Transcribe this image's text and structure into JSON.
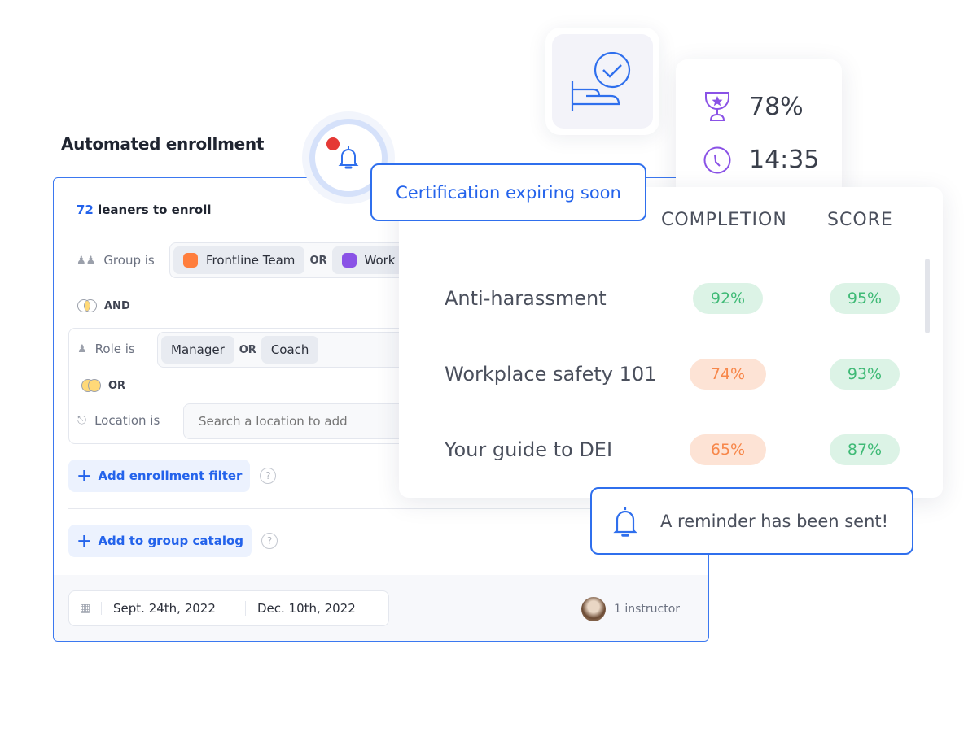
{
  "enrollment": {
    "title": "Automated enrollment",
    "learner_count": "72",
    "learner_label": "leaners to enroll",
    "group_filter": {
      "label": "Group is",
      "chips": [
        {
          "label": "Frontline Team",
          "color": "#ff7e3d"
        },
        {
          "label": "Work",
          "color": "#8a52e6"
        }
      ],
      "or": "OR"
    },
    "and_label": "AND",
    "role_filter": {
      "label": "Role is",
      "chips": [
        "Manager",
        "Coach"
      ],
      "or": "OR"
    },
    "or_label": "OR",
    "location_filter": {
      "label": "Location is",
      "placeholder": "Search a location to add"
    },
    "add_filter_label": "Add enrollment filter",
    "add_catalog_label": "Add to group catalog",
    "help": "?",
    "start_date": "Sept. 24th, 2022",
    "end_date": "Dec. 10th, 2022",
    "instructor": "1 instructor"
  },
  "stats": {
    "score": "78%",
    "time": "14:35"
  },
  "certification_toast": "Certification expiring soon",
  "reminder_toast": "A reminder has been sent!",
  "table": {
    "headers": [
      "COMPLETION",
      "SCORE"
    ],
    "rows": [
      {
        "course": "Anti-harassment",
        "completion": "92%",
        "score": "95%",
        "completion_status": "green"
      },
      {
        "course": "Workplace safety 101",
        "completion": "74%",
        "score": "93%",
        "completion_status": "orange"
      },
      {
        "course": "Your guide to DEI",
        "completion": "65%",
        "score": "87%",
        "completion_status": "orange"
      }
    ]
  },
  "colors": {
    "accent": "#2f6fed",
    "purple": "#8a52e6",
    "green": "#3fba76",
    "orange": "#f7874a",
    "notification_dot": "#e53935"
  }
}
